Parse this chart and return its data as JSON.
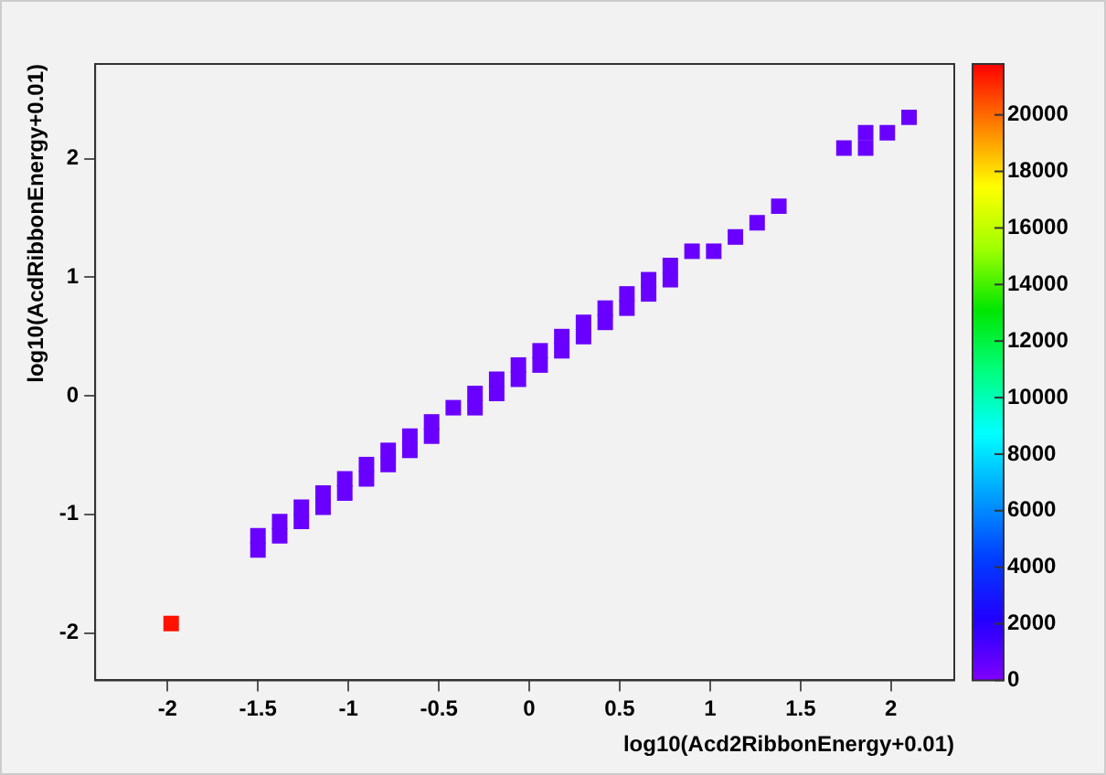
{
  "chart_data": {
    "type": "scatter",
    "xlabel": "log10(Acd2RibbonEnergy+0.01)",
    "ylabel": "log10(AcdRibbonEnergy+0.01)",
    "x": [
      -1.98,
      -1.5,
      -1.5,
      -1.38,
      -1.38,
      -1.26,
      -1.26,
      -1.14,
      -1.14,
      -1.02,
      -1.02,
      -0.9,
      -0.9,
      -0.78,
      -0.78,
      -0.66,
      -0.66,
      -0.54,
      -0.54,
      -0.42,
      -0.3,
      -0.3,
      -0.18,
      -0.18,
      -0.06,
      -0.06,
      0.06,
      0.06,
      0.18,
      0.18,
      0.3,
      0.3,
      0.42,
      0.42,
      0.54,
      0.54,
      0.66,
      0.66,
      0.78,
      0.78,
      0.9,
      1.02,
      1.14,
      1.26,
      1.38,
      1.74,
      1.86,
      1.86,
      1.98,
      2.1
    ],
    "values": [
      -1.92,
      -1.3,
      -1.18,
      -1.18,
      -1.06,
      -1.06,
      -0.94,
      -0.94,
      -0.82,
      -0.82,
      -0.7,
      -0.7,
      -0.58,
      -0.58,
      -0.46,
      -0.46,
      -0.34,
      -0.34,
      -0.22,
      -0.1,
      -0.1,
      0.02,
      0.02,
      0.14,
      0.14,
      0.26,
      0.26,
      0.38,
      0.38,
      0.5,
      0.5,
      0.62,
      0.62,
      0.74,
      0.74,
      0.86,
      0.86,
      0.98,
      0.98,
      1.1,
      1.22,
      1.22,
      1.34,
      1.46,
      1.6,
      2.09,
      2.09,
      2.22,
      2.22,
      2.35
    ],
    "cvalues": [
      21500,
      500,
      500,
      500,
      500,
      500,
      500,
      500,
      500,
      500,
      500,
      500,
      500,
      500,
      500,
      500,
      500,
      500,
      500,
      500,
      500,
      500,
      500,
      500,
      500,
      500,
      500,
      500,
      500,
      500,
      500,
      500,
      500,
      500,
      500,
      500,
      500,
      500,
      500,
      500,
      500,
      500,
      500,
      500,
      500,
      500,
      500,
      500,
      500,
      500
    ],
    "marker": "square",
    "xlim": [
      -2.4,
      2.35
    ],
    "ylim": [
      -2.4,
      2.8
    ],
    "xticks": [
      -2,
      -1.5,
      -1,
      -0.5,
      0,
      0.5,
      1,
      1.5,
      2
    ],
    "yticks": [
      -2,
      -1,
      0,
      1,
      2
    ],
    "clim": [
      0,
      21800
    ],
    "cticks": [
      0,
      2000,
      4000,
      6000,
      8000,
      10000,
      12000,
      14000,
      16000,
      18000,
      20000
    ],
    "grid": false,
    "legend": false
  }
}
